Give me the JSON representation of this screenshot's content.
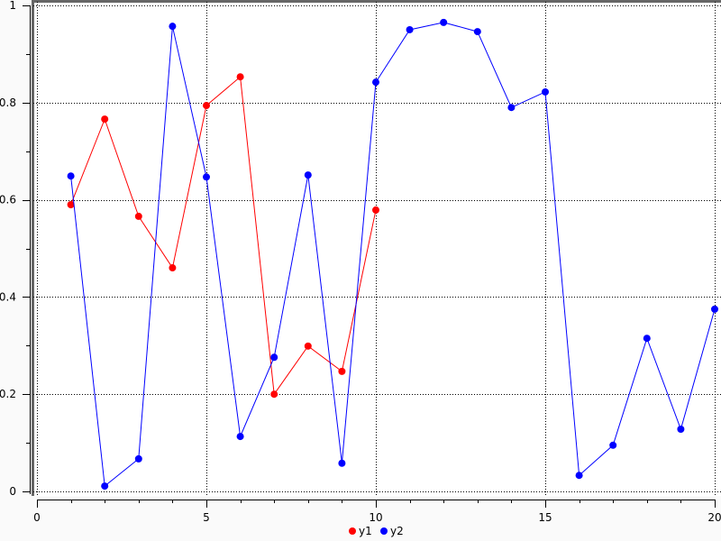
{
  "chart_data": {
    "type": "line",
    "title": "",
    "xlabel": "",
    "ylabel": "",
    "xlim": [
      0,
      20
    ],
    "ylim": [
      0,
      1
    ],
    "x_ticks": [
      "0",
      "5",
      "10",
      "15",
      "20"
    ],
    "y_ticks": [
      "0",
      "0.2",
      "0.4",
      "0.6",
      "0.8",
      "1"
    ],
    "grid": true,
    "legend_position": "bottom",
    "series": [
      {
        "name": "y1",
        "color": "#ff0000",
        "x": [
          1,
          2,
          3,
          4,
          5,
          6,
          7,
          8,
          9,
          10
        ],
        "values": [
          0.59,
          0.766,
          0.566,
          0.46,
          0.794,
          0.853,
          0.2,
          0.299,
          0.247,
          0.579
        ]
      },
      {
        "name": "y2",
        "color": "#0000ff",
        "x": [
          1,
          2,
          3,
          4,
          5,
          6,
          7,
          8,
          9,
          10,
          11,
          12,
          13,
          14,
          15,
          16,
          17,
          18,
          19,
          20
        ],
        "values": [
          0.649,
          0.011,
          0.067,
          0.957,
          0.647,
          0.113,
          0.276,
          0.651,
          0.058,
          0.842,
          0.95,
          0.965,
          0.946,
          0.79,
          0.822,
          0.033,
          0.095,
          0.315,
          0.128,
          0.375
        ]
      }
    ]
  }
}
